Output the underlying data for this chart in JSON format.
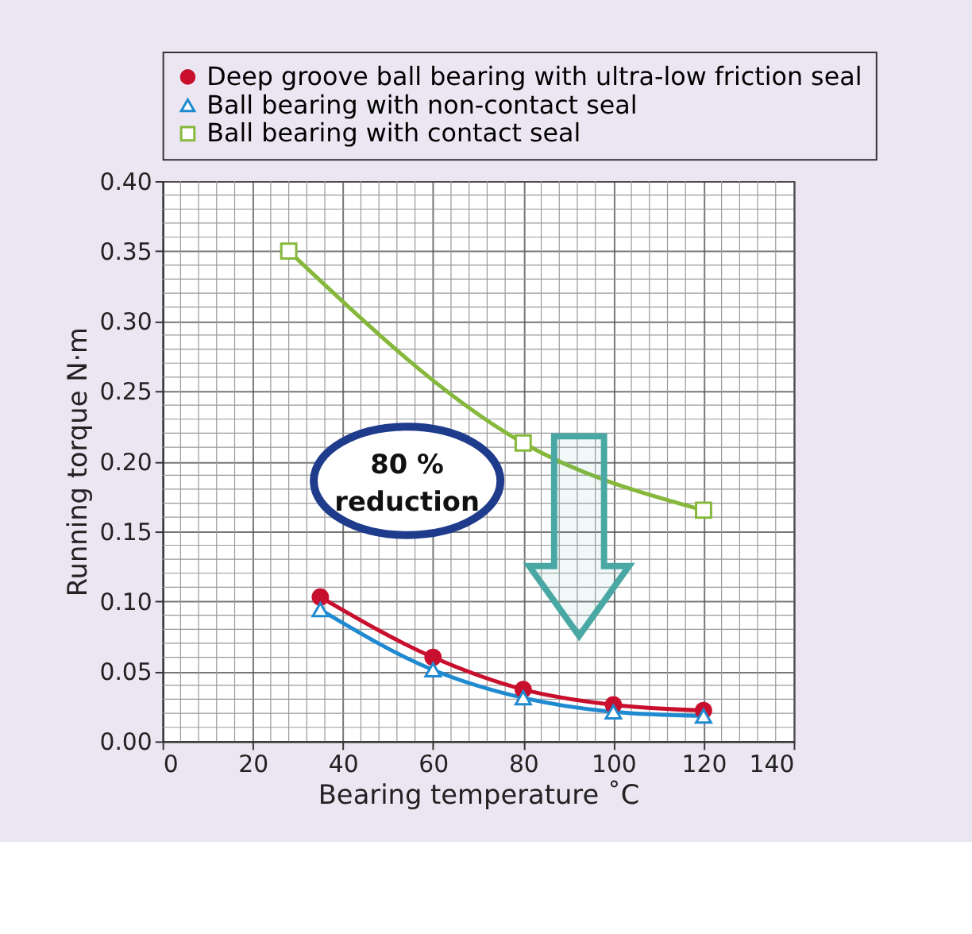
{
  "chart_data": {
    "type": "line",
    "xlabel": "Bearing temperature ˚C",
    "ylabel": "Running torque N·m",
    "xlim": [
      0,
      140
    ],
    "xticks": [
      0,
      20,
      40,
      60,
      80,
      100,
      120,
      140
    ],
    "ylim": [
      0,
      0.4
    ],
    "yticks": [
      {
        "value": 0,
        "label": "0.00"
      },
      {
        "value": 0.05,
        "label": "0.05"
      },
      {
        "value": 0.1,
        "label": "0.10"
      },
      {
        "value": 0.15,
        "label": "0.15"
      },
      {
        "value": 0.2,
        "label": "0.20"
      },
      {
        "value": 0.25,
        "label": "0.25"
      },
      {
        "value": 0.3,
        "label": "0.30"
      },
      {
        "value": 0.35,
        "label": "0.35"
      },
      {
        "value": 0.4,
        "label": "0.40"
      }
    ],
    "grid": true,
    "legend": "top",
    "line_style": "solid",
    "annotations": [
      "80 % reduction"
    ],
    "series": [
      {
        "name": "Deep groove ball bearing with ultra-low friction seal",
        "color": "#c8102e",
        "marker": "circle",
        "x": [
          35,
          60,
          80,
          100,
          120
        ],
        "values": [
          0.103,
          0.06,
          0.037,
          0.026,
          0.022
        ]
      },
      {
        "name": "Ball bearing with non-contact seal",
        "color": "#1f8ad0",
        "marker": "triangle",
        "x": [
          35,
          60,
          80,
          100,
          120
        ],
        "values": [
          0.094,
          0.051,
          0.031,
          0.021,
          0.018
        ]
      },
      {
        "name": "Ball bearing with contact seal",
        "color": "#86b83c",
        "marker": "square",
        "x": [
          28,
          80,
          120
        ],
        "values": [
          0.35,
          0.213,
          0.165
        ]
      }
    ]
  }
}
